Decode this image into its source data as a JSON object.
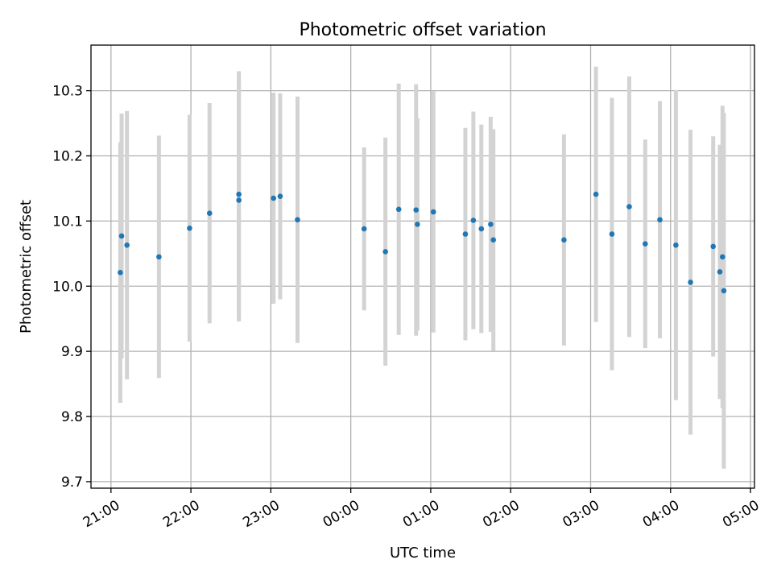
{
  "chart_data": {
    "type": "scatter",
    "title": "Photometric offset variation",
    "xlabel": "UTC time",
    "ylabel": "Photometric offset",
    "x_tick_labels": [
      "21:00",
      "22:00",
      "23:00",
      "00:00",
      "01:00",
      "02:00",
      "03:00",
      "04:00",
      "05:00"
    ],
    "y_tick_labels": [
      "9.7",
      "9.8",
      "9.9",
      "10.0",
      "10.1",
      "10.2",
      "10.3"
    ],
    "x_range_hours": [
      20.75,
      29.05
    ],
    "ylim": [
      9.69,
      10.37
    ],
    "grid": true,
    "colors": {
      "marker": "#1f77b4",
      "errorbar": "#d3d3d3",
      "grid": "#b0b0b0"
    },
    "points": [
      {
        "t": "21:07",
        "y": 10.021,
        "err": 0.2
      },
      {
        "t": "21:08",
        "y": 10.077,
        "err": 0.188
      },
      {
        "t": "21:12",
        "y": 10.063,
        "err": 0.206
      },
      {
        "t": "21:36",
        "y": 10.045,
        "err": 0.186
      },
      {
        "t": "21:59",
        "y": 10.089,
        "err": 0.174
      },
      {
        "t": "22:14",
        "y": 10.112,
        "err": 0.169
      },
      {
        "t": "22:36",
        "y": 10.141,
        "err": 0.189
      },
      {
        "t": "22:36",
        "y": 10.132,
        "err": 0.186
      },
      {
        "t": "23:02",
        "y": 10.135,
        "err": 0.162
      },
      {
        "t": "23:07",
        "y": 10.138,
        "err": 0.158
      },
      {
        "t": "23:20",
        "y": 10.102,
        "err": 0.189
      },
      {
        "t": "00:10",
        "y": 10.088,
        "err": 0.125
      },
      {
        "t": "00:26",
        "y": 10.053,
        "err": 0.175
      },
      {
        "t": "00:36",
        "y": 10.118,
        "err": 0.193
      },
      {
        "t": "00:49",
        "y": 10.117,
        "err": 0.193
      },
      {
        "t": "00:50",
        "y": 10.095,
        "err": 0.163
      },
      {
        "t": "01:02",
        "y": 10.114,
        "err": 0.185
      },
      {
        "t": "01:26",
        "y": 10.08,
        "err": 0.163
      },
      {
        "t": "01:32",
        "y": 10.101,
        "err": 0.167
      },
      {
        "t": "01:38",
        "y": 10.088,
        "err": 0.16
      },
      {
        "t": "01:45",
        "y": 10.095,
        "err": 0.165
      },
      {
        "t": "01:47",
        "y": 10.071,
        "err": 0.17
      },
      {
        "t": "02:40",
        "y": 10.071,
        "err": 0.162
      },
      {
        "t": "03:04",
        "y": 10.141,
        "err": 0.196
      },
      {
        "t": "03:16",
        "y": 10.08,
        "err": 0.209
      },
      {
        "t": "03:29",
        "y": 10.122,
        "err": 0.2
      },
      {
        "t": "03:41",
        "y": 10.065,
        "err": 0.16
      },
      {
        "t": "03:52",
        "y": 10.102,
        "err": 0.182
      },
      {
        "t": "04:04",
        "y": 10.063,
        "err": 0.238
      },
      {
        "t": "04:15",
        "y": 10.006,
        "err": 0.234
      },
      {
        "t": "04:32",
        "y": 10.061,
        "err": 0.169
      },
      {
        "t": "04:37",
        "y": 10.022,
        "err": 0.195
      },
      {
        "t": "04:39",
        "y": 10.045,
        "err": 0.232
      },
      {
        "t": "04:40",
        "y": 9.993,
        "err": 0.273
      }
    ]
  }
}
